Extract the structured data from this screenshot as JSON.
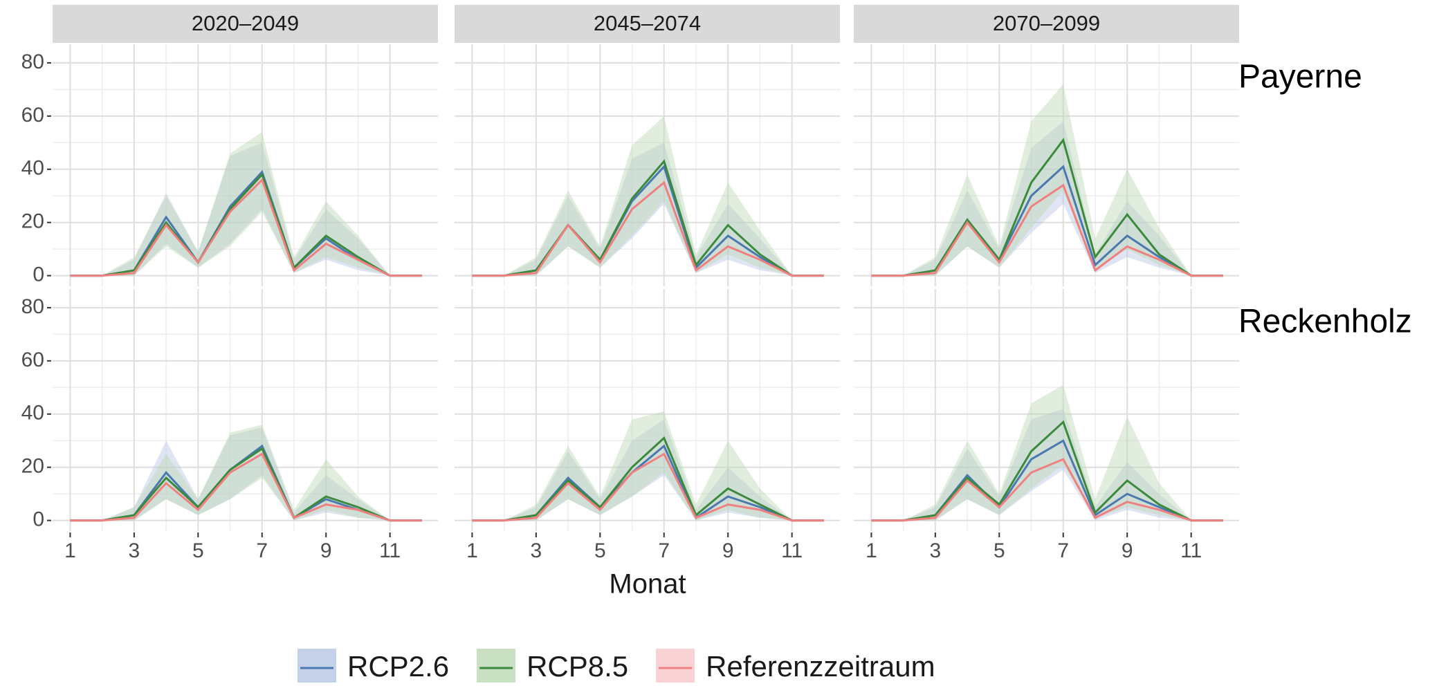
{
  "facet_columns": [
    "2020–2049",
    "2045–2074",
    "2070–2099"
  ],
  "facet_rows": [
    "Payerne",
    "Reckenholz"
  ],
  "xlabel": "Monat",
  "chart_data": [
    {
      "type": "line",
      "x": [
        1,
        2,
        3,
        4,
        5,
        6,
        7,
        8,
        9,
        10,
        11,
        12
      ],
      "xlim": [
        0.45,
        12.5
      ],
      "ylim": [
        -4,
        87
      ],
      "xticks": [
        1,
        3,
        5,
        7,
        9,
        11
      ],
      "yticks": [
        0,
        20,
        40,
        60,
        80
      ],
      "grid": true,
      "series": [
        {
          "name": "RCP2.6",
          "color": "#4a78b0",
          "fill": "#b7c6e3",
          "values": [
            0,
            0,
            2,
            22,
            5,
            26,
            39,
            3,
            14,
            6,
            0,
            0
          ],
          "lower": [
            0,
            0,
            0,
            12,
            3,
            12,
            25,
            1,
            6,
            2,
            0,
            0
          ],
          "upper": [
            0,
            0,
            6,
            31,
            9,
            45,
            50,
            6,
            25,
            14,
            0,
            0
          ]
        },
        {
          "name": "RCP8.5",
          "color": "#3b8a3b",
          "fill": "#bcd8b4",
          "values": [
            0,
            0,
            2,
            20,
            5,
            25,
            38,
            3,
            15,
            7,
            0,
            0
          ],
          "lower": [
            0,
            0,
            0,
            11,
            3,
            11,
            24,
            1,
            7,
            3,
            0,
            0
          ],
          "upper": [
            0,
            0,
            7,
            30,
            9,
            46,
            54,
            7,
            28,
            15,
            0,
            0
          ]
        },
        {
          "name": "Referenzzeitraum",
          "color": "#f08080",
          "fill": "#f7c8c8",
          "values": [
            0,
            0,
            1,
            19,
            5,
            24,
            36,
            2,
            12,
            6,
            0,
            0
          ]
        }
      ]
    },
    {
      "type": "line",
      "x": [
        1,
        2,
        3,
        4,
        5,
        6,
        7,
        8,
        9,
        10,
        11,
        12
      ],
      "xlim": [
        0.45,
        12.5
      ],
      "ylim": [
        -4,
        87
      ],
      "xticks": [
        1,
        3,
        5,
        7,
        9,
        11
      ],
      "yticks": [
        0,
        20,
        40,
        60,
        80
      ],
      "grid": true,
      "series": [
        {
          "name": "RCP2.6",
          "color": "#4a78b0",
          "fill": "#b7c6e3",
          "values": [
            0,
            0,
            2,
            19,
            6,
            28,
            41,
            3,
            15,
            7,
            0,
            0
          ],
          "lower": [
            0,
            0,
            0,
            11,
            3,
            14,
            27,
            1,
            6,
            2,
            0,
            0
          ],
          "upper": [
            0,
            0,
            6,
            30,
            10,
            44,
            50,
            7,
            27,
            14,
            0,
            0
          ]
        },
        {
          "name": "RCP8.5",
          "color": "#3b8a3b",
          "fill": "#bcd8b4",
          "values": [
            0,
            0,
            2,
            19,
            6,
            29,
            43,
            4,
            19,
            8,
            0,
            0
          ],
          "lower": [
            0,
            0,
            0,
            11,
            3,
            15,
            28,
            1,
            8,
            3,
            0,
            0
          ],
          "upper": [
            0,
            0,
            7,
            32,
            11,
            49,
            60,
            8,
            35,
            17,
            0,
            0
          ]
        },
        {
          "name": "Referenzzeitraum",
          "color": "#f08080",
          "fill": "#f7c8c8",
          "values": [
            0,
            0,
            1,
            19,
            5,
            25,
            35,
            2,
            11,
            6,
            0,
            0
          ]
        }
      ]
    },
    {
      "type": "line",
      "x": [
        1,
        2,
        3,
        4,
        5,
        6,
        7,
        8,
        9,
        10,
        11,
        12
      ],
      "xlim": [
        0.45,
        12.5
      ],
      "ylim": [
        -4,
        87
      ],
      "xticks": [
        1,
        3,
        5,
        7,
        9,
        11
      ],
      "yticks": [
        0,
        20,
        40,
        60,
        80
      ],
      "grid": true,
      "series": [
        {
          "name": "RCP2.6",
          "color": "#4a78b0",
          "fill": "#b7c6e3",
          "values": [
            0,
            0,
            2,
            21,
            6,
            30,
            41,
            4,
            15,
            7,
            0,
            0
          ],
          "lower": [
            0,
            0,
            0,
            11,
            3,
            16,
            27,
            1,
            7,
            3,
            0,
            0
          ],
          "upper": [
            0,
            0,
            6,
            32,
            10,
            48,
            58,
            8,
            28,
            15,
            0,
            0
          ]
        },
        {
          "name": "RCP8.5",
          "color": "#3b8a3b",
          "fill": "#bcd8b4",
          "values": [
            0,
            0,
            2,
            21,
            6,
            35,
            51,
            7,
            23,
            8,
            0,
            0
          ],
          "lower": [
            0,
            0,
            0,
            11,
            3,
            18,
            32,
            2,
            10,
            4,
            0,
            0
          ],
          "upper": [
            0,
            0,
            7,
            38,
            11,
            58,
            72,
            14,
            40,
            18,
            0,
            0
          ]
        },
        {
          "name": "Referenzzeitraum",
          "color": "#f08080",
          "fill": "#f7c8c8",
          "values": [
            0,
            0,
            1,
            20,
            5,
            26,
            34,
            2,
            11,
            6,
            0,
            0
          ]
        }
      ]
    },
    {
      "type": "line",
      "x": [
        1,
        2,
        3,
        4,
        5,
        6,
        7,
        8,
        9,
        10,
        11,
        12
      ],
      "xlim": [
        0.45,
        12.5
      ],
      "ylim": [
        -4,
        87
      ],
      "xticks": [
        1,
        3,
        5,
        7,
        9,
        11
      ],
      "yticks": [
        0,
        20,
        40,
        60,
        80
      ],
      "grid": true,
      "series": [
        {
          "name": "RCP2.6",
          "color": "#4a78b0",
          "fill": "#b7c6e3",
          "values": [
            0,
            0,
            2,
            18,
            5,
            19,
            28,
            1,
            8,
            4,
            0,
            0
          ],
          "lower": [
            0,
            0,
            0,
            8,
            2,
            8,
            17,
            0,
            3,
            1,
            0,
            0
          ],
          "upper": [
            0,
            0,
            5,
            30,
            8,
            32,
            35,
            3,
            17,
            8,
            0,
            0
          ]
        },
        {
          "name": "RCP8.5",
          "color": "#3b8a3b",
          "fill": "#bcd8b4",
          "values": [
            0,
            0,
            2,
            16,
            5,
            19,
            27,
            1,
            9,
            5,
            0,
            0
          ],
          "lower": [
            0,
            0,
            0,
            8,
            2,
            8,
            16,
            0,
            4,
            1,
            0,
            0
          ],
          "upper": [
            0,
            0,
            5,
            25,
            8,
            33,
            36,
            4,
            23,
            9,
            0,
            0
          ]
        },
        {
          "name": "Referenzzeitraum",
          "color": "#f08080",
          "fill": "#f7c8c8",
          "values": [
            0,
            0,
            1,
            14,
            4,
            18,
            25,
            1,
            6,
            4,
            0,
            0
          ]
        }
      ]
    },
    {
      "type": "line",
      "x": [
        1,
        2,
        3,
        4,
        5,
        6,
        7,
        8,
        9,
        10,
        11,
        12
      ],
      "xlim": [
        0.45,
        12.5
      ],
      "ylim": [
        -4,
        87
      ],
      "xticks": [
        1,
        3,
        5,
        7,
        9,
        11
      ],
      "yticks": [
        0,
        20,
        40,
        60,
        80
      ],
      "grid": true,
      "series": [
        {
          "name": "RCP2.6",
          "color": "#4a78b0",
          "fill": "#b7c6e3",
          "values": [
            0,
            0,
            2,
            16,
            5,
            18,
            28,
            1,
            9,
            5,
            0,
            0
          ],
          "lower": [
            0,
            0,
            0,
            8,
            2,
            9,
            17,
            0,
            3,
            1,
            0,
            0
          ],
          "upper": [
            0,
            0,
            5,
            26,
            8,
            30,
            38,
            4,
            20,
            9,
            0,
            0
          ]
        },
        {
          "name": "RCP8.5",
          "color": "#3b8a3b",
          "fill": "#bcd8b4",
          "values": [
            0,
            0,
            2,
            15,
            5,
            20,
            31,
            2,
            12,
            6,
            0,
            0
          ],
          "lower": [
            0,
            0,
            0,
            8,
            2,
            9,
            18,
            0,
            4,
            1,
            0,
            0
          ],
          "upper": [
            0,
            0,
            6,
            28,
            9,
            38,
            41,
            6,
            30,
            12,
            0,
            0
          ]
        },
        {
          "name": "Referenzzeitraum",
          "color": "#f08080",
          "fill": "#f7c8c8",
          "values": [
            0,
            0,
            1,
            14,
            4,
            18,
            25,
            1,
            6,
            4,
            0,
            0
          ]
        }
      ]
    },
    {
      "type": "line",
      "x": [
        1,
        2,
        3,
        4,
        5,
        6,
        7,
        8,
        9,
        10,
        11,
        12
      ],
      "xlim": [
        0.45,
        12.5
      ],
      "ylim": [
        -4,
        87
      ],
      "xticks": [
        1,
        3,
        5,
        7,
        9,
        11
      ],
      "yticks": [
        0,
        20,
        40,
        60,
        80
      ],
      "grid": true,
      "series": [
        {
          "name": "RCP2.6",
          "color": "#4a78b0",
          "fill": "#b7c6e3",
          "values": [
            0,
            0,
            2,
            17,
            5,
            23,
            30,
            2,
            10,
            5,
            0,
            0
          ],
          "lower": [
            0,
            0,
            0,
            8,
            2,
            11,
            19,
            0,
            4,
            1,
            0,
            0
          ],
          "upper": [
            0,
            0,
            5,
            27,
            9,
            38,
            42,
            5,
            22,
            10,
            0,
            0
          ]
        },
        {
          "name": "RCP8.5",
          "color": "#3b8a3b",
          "fill": "#bcd8b4",
          "values": [
            0,
            0,
            2,
            16,
            6,
            26,
            37,
            3,
            15,
            6,
            0,
            0
          ],
          "lower": [
            0,
            0,
            0,
            8,
            2,
            12,
            21,
            1,
            5,
            2,
            0,
            0
          ],
          "upper": [
            0,
            0,
            6,
            30,
            10,
            44,
            51,
            8,
            39,
            14,
            0,
            0
          ]
        },
        {
          "name": "Referenzzeitraum",
          "color": "#f08080",
          "fill": "#f7c8c8",
          "values": [
            0,
            0,
            1,
            15,
            5,
            18,
            23,
            1,
            7,
            4,
            0,
            0
          ]
        }
      ]
    }
  ]
}
